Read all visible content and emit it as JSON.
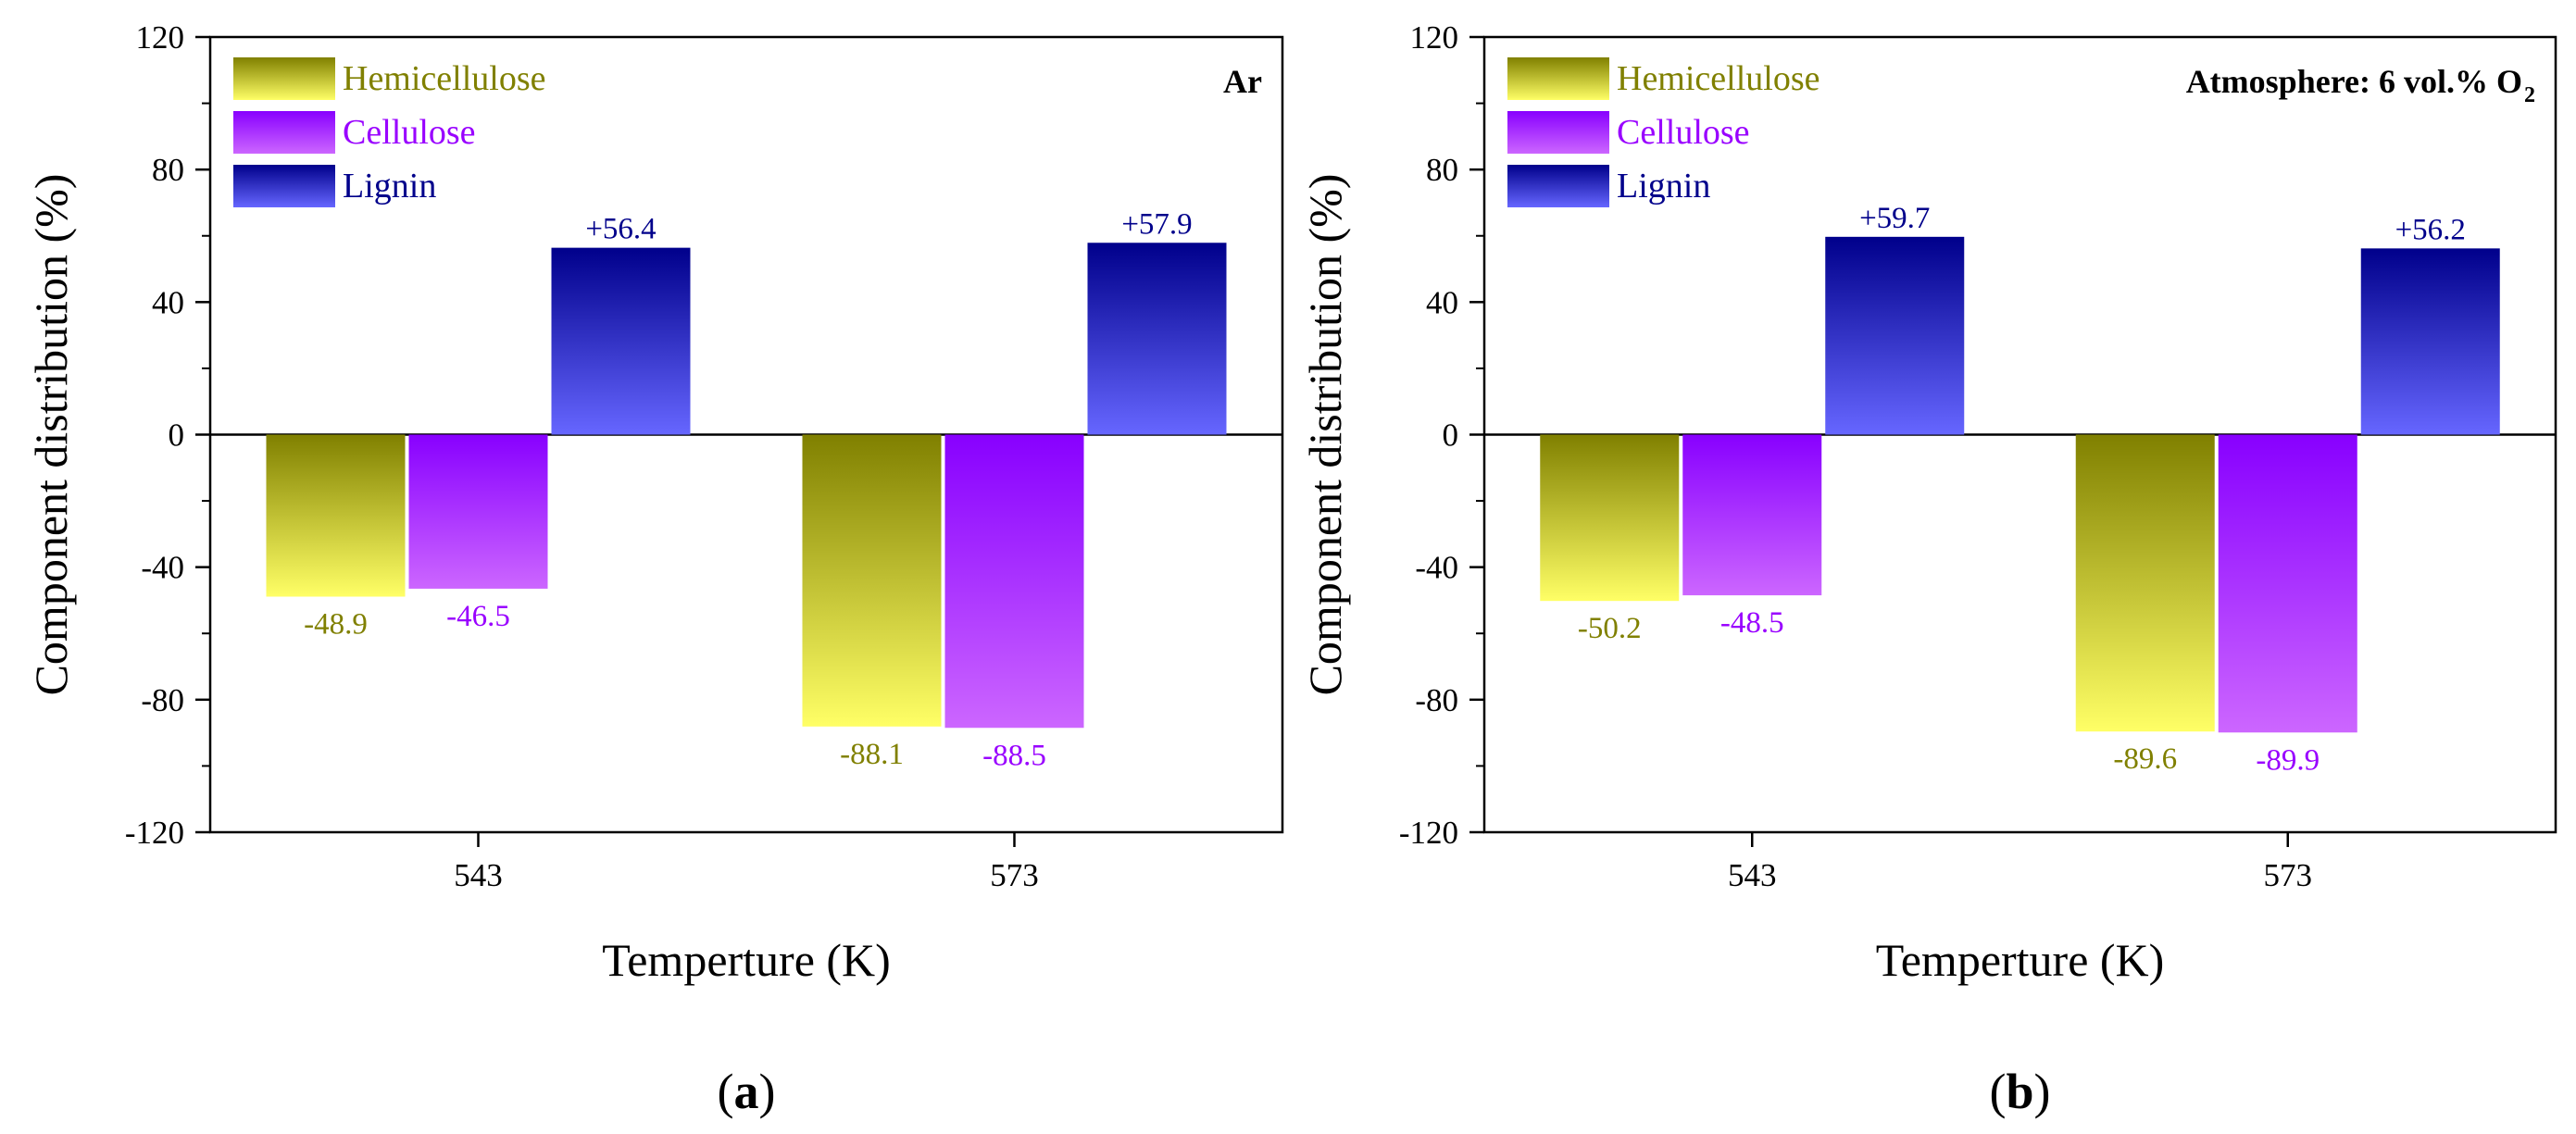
{
  "chart_data": [
    {
      "type": "bar",
      "panel_label": "a",
      "annotation": "Ar",
      "xlabel": "Temperture (K)",
      "ylabel": "Component distribution (%)",
      "categories": [
        "543",
        "573"
      ],
      "ylim": [
        -120,
        120
      ],
      "yticks": [
        120,
        80,
        40,
        0,
        -40,
        -80,
        -120
      ],
      "legend_position": "top-left",
      "series": [
        {
          "name": "Hemicellulose",
          "values": [
            -48.9,
            -88.1
          ],
          "labels": [
            "-48.9",
            "-88.1"
          ]
        },
        {
          "name": "Cellulose",
          "values": [
            -46.5,
            -88.5
          ],
          "labels": [
            "-46.5",
            "-88.5"
          ]
        },
        {
          "name": "Lignin",
          "values": [
            56.4,
            57.9
          ],
          "labels": [
            "+56.4",
            "+57.9"
          ]
        }
      ]
    },
    {
      "type": "bar",
      "panel_label": "b",
      "annotation": "Atmosphere: 6 vol.% O",
      "annotation_subscript": "2",
      "xlabel": "Temperture (K)",
      "ylabel": "Component distribution (%)",
      "categories": [
        "543",
        "573"
      ],
      "ylim": [
        -120,
        120
      ],
      "yticks": [
        120,
        80,
        40,
        0,
        -40,
        -80,
        -120
      ],
      "legend_position": "top-left",
      "series": [
        {
          "name": "Hemicellulose",
          "values": [
            -50.2,
            -89.6
          ],
          "labels": [
            "-50.2",
            "-89.6"
          ]
        },
        {
          "name": "Cellulose",
          "values": [
            -48.5,
            -89.9
          ],
          "labels": [
            "-48.5",
            "-89.9"
          ]
        },
        {
          "name": "Lignin",
          "values": [
            59.7,
            56.2
          ],
          "labels": [
            "+59.7",
            "+56.2"
          ]
        }
      ]
    }
  ],
  "colors": {
    "Hemicellulose": {
      "dark": "#808000",
      "light": "#ffff66",
      "text": "#808000"
    },
    "Cellulose": {
      "dark": "#8800ff",
      "light": "#cc66ff",
      "text": "#9900ff"
    },
    "Lignin": {
      "dark": "#00008b",
      "light": "#6666ff",
      "text": "#00008b"
    }
  }
}
